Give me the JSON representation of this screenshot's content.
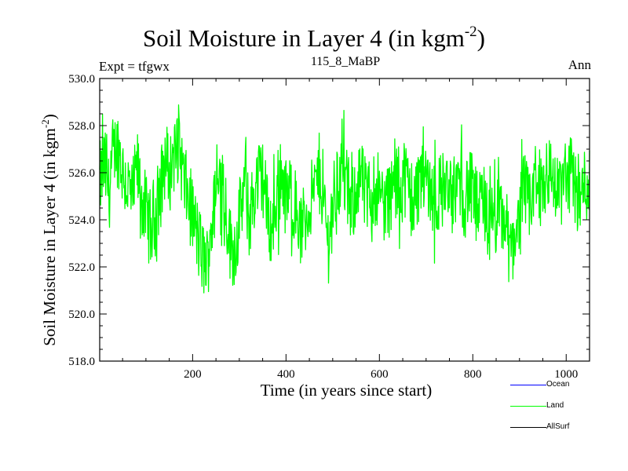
{
  "title": {
    "main": "Soil Moisture in Layer 4 (in kgm",
    "sup": "-2",
    "close": ")"
  },
  "expt_label": "Expt = tfgwx",
  "subtitle": "115_8_MaBP",
  "season": "Ann",
  "chart_data": {
    "type": "line",
    "title": "Soil Moisture in Layer 4 (in kgm-2)",
    "xlabel": "Time (in years since start)",
    "ylabel": "Soil Moisture in Layer 4 (in kgm-2)",
    "xlim": [
      1,
      1050
    ],
    "ylim": [
      518,
      530
    ],
    "x_ticks": [
      200,
      400,
      600,
      800,
      1000
    ],
    "y_ticks": [
      "518.0",
      "520.0",
      "522.0",
      "524.0",
      "526.0",
      "528.0",
      "530.0"
    ],
    "series": [
      {
        "name": "Ocean",
        "color": "#0000ff",
        "values": []
      },
      {
        "name": "Land",
        "color": "#00ff00",
        "x_start": 1,
        "x_step": 10,
        "values": [
          525.6,
          526.3,
          525.2,
          526.8,
          527.1,
          526.0,
          525.4,
          524.8,
          526.2,
          525.0,
          524.2,
          523.5,
          524.6,
          525.3,
          526.6,
          526.0,
          526.9,
          527.3,
          525.6,
          524.9,
          524.1,
          523.2,
          522.4,
          522.1,
          523.8,
          525.0,
          526.5,
          524.6,
          522.9,
          522.8,
          524.2,
          525.3,
          524.0,
          525.0,
          526.0,
          525.7,
          524.1,
          523.5,
          525.3,
          525.9,
          524.8,
          525.2,
          524.5,
          523.4,
          524.0,
          524.6,
          525.2,
          526.0,
          524.7,
          523.0,
          524.8,
          525.6,
          526.1,
          525.2,
          524.4,
          525.6,
          525.8,
          524.9,
          525.0,
          525.5,
          525.3,
          524.6,
          524.9,
          525.5,
          525.3,
          526.0,
          525.5,
          524.9,
          525.2,
          526.3,
          525.8,
          525.4,
          524.8,
          525.2,
          525.5,
          524.5,
          525.2,
          525.8,
          525.0,
          525.4,
          525.0,
          524.3,
          524.7,
          524.0,
          523.4,
          524.1,
          524.2,
          523.8,
          522.4,
          523.6,
          524.1,
          525.4,
          524.2,
          525.8,
          525.3,
          525.5,
          526.2,
          525.8,
          525.0,
          525.5,
          525.8,
          526.0,
          525.3,
          524.9,
          525.6
        ]
      },
      {
        "name": "AllSurf",
        "color": "#000000",
        "values": []
      }
    ]
  }
}
